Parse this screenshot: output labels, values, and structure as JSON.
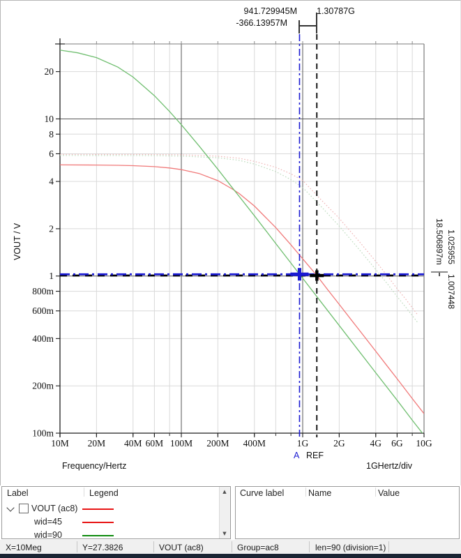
{
  "axes": {
    "y_label": "VOUT / V",
    "x_label": "Frequency/Hertz",
    "x_div_label": "1GHertz/div"
  },
  "cursors": {
    "a": {
      "name": "A",
      "color": "#1a1ad2",
      "x_hz": 941729945,
      "y_v": 1.025955,
      "x_label": "941.729945M",
      "y_label": "1.025955"
    },
    "ref": {
      "name": "REF",
      "color": "#000000",
      "x_hz": 1307870000,
      "y_v": 1.007448,
      "x_label": "1.30787G",
      "y_label": "1.007448"
    },
    "delta_x_label": "-366.13957M",
    "delta_y_label": "18.506897m"
  },
  "chart_data": {
    "type": "line",
    "x_axis": {
      "label": "Frequency/Hertz",
      "scale": "log",
      "range": [
        10000000.0,
        10000000000.0
      ],
      "ticks": [
        {
          "v": 10000000.0,
          "label": "10M"
        },
        {
          "v": 20000000.0,
          "label": "20M"
        },
        {
          "v": 40000000.0,
          "label": "40M"
        },
        {
          "v": 60000000.0,
          "label": "60M"
        },
        {
          "v": 100000000.0,
          "label": "100M"
        },
        {
          "v": 200000000.0,
          "label": "200M"
        },
        {
          "v": 400000000.0,
          "label": "400M"
        },
        {
          "v": 1000000000.0,
          "label": "1G"
        },
        {
          "v": 2000000000.0,
          "label": "2G"
        },
        {
          "v": 4000000000.0,
          "label": "4G"
        },
        {
          "v": 6000000000.0,
          "label": "6G"
        },
        {
          "v": 10000000000.0,
          "label": "10G"
        }
      ],
      "minor_gridlines": [
        20000000.0,
        40000000.0,
        60000000.0,
        80000000.0,
        200000000.0,
        400000000.0,
        600000000.0,
        800000000.0,
        2000000000.0,
        4000000000.0,
        6000000000.0,
        8000000000.0
      ],
      "major_gridlines": [
        100000000.0,
        1000000000.0
      ]
    },
    "y_axis": {
      "label": "VOUT / V",
      "scale": "log",
      "range": [
        0.1,
        30
      ],
      "ticks": [
        {
          "v": 20,
          "label": "20"
        },
        {
          "v": 10,
          "label": "10"
        },
        {
          "v": 8,
          "label": "8"
        },
        {
          "v": 6,
          "label": "6"
        },
        {
          "v": 4,
          "label": "4"
        },
        {
          "v": 2,
          "label": "2"
        },
        {
          "v": 1,
          "label": "1"
        },
        {
          "v": 0.8,
          "label": "800m"
        },
        {
          "v": 0.6,
          "label": "600m"
        },
        {
          "v": 0.4,
          "label": "400m"
        },
        {
          "v": 0.2,
          "label": "200m"
        },
        {
          "v": 0.1,
          "label": "100m"
        }
      ],
      "minor_gridlines": [
        0.2,
        0.4,
        0.6,
        0.8,
        2,
        4,
        6,
        8,
        20
      ],
      "major_gridlines": [
        1,
        10
      ]
    },
    "series": [
      {
        "name": "wid=45 (dotted)",
        "style": "dotted",
        "color": "#efb6b6",
        "points": [
          [
            10000000.0,
            5.95
          ],
          [
            50000000.0,
            5.94
          ],
          [
            100000000.0,
            5.91
          ],
          [
            200000000.0,
            5.79
          ],
          [
            300000000.0,
            5.62
          ],
          [
            400000000.0,
            5.37
          ],
          [
            600000000.0,
            4.92
          ],
          [
            800000000.0,
            4.47
          ],
          [
            1000000000.0,
            4.06
          ],
          [
            1400000000.0,
            3.09
          ],
          [
            2000000000.0,
            2.33
          ],
          [
            3000000000.0,
            1.62
          ],
          [
            4000000000.0,
            1.24
          ],
          [
            5000000000.0,
            1.0
          ],
          [
            6000000000.0,
            0.83
          ],
          [
            7000000000.0,
            0.72
          ],
          [
            8800000000.0,
            0.57
          ]
        ]
      },
      {
        "name": "wid=90 (dotted)",
        "style": "dotted",
        "color": "#bedcbe",
        "points": [
          [
            10000000.0,
            5.85
          ],
          [
            50000000.0,
            5.84
          ],
          [
            100000000.0,
            5.8
          ],
          [
            200000000.0,
            5.66
          ],
          [
            300000000.0,
            5.45
          ],
          [
            400000000.0,
            5.16
          ],
          [
            600000000.0,
            4.62
          ],
          [
            800000000.0,
            4.11
          ],
          [
            1000000000.0,
            3.66
          ],
          [
            1400000000.0,
            2.8
          ],
          [
            2000000000.0,
            2.08
          ],
          [
            3000000000.0,
            1.44
          ],
          [
            4000000000.0,
            1.1
          ],
          [
            5000000000.0,
            0.89
          ],
          [
            6000000000.0,
            0.74
          ],
          [
            7000000000.0,
            0.64
          ],
          [
            8800000000.0,
            0.51
          ]
        ]
      },
      {
        "name": "wid=45",
        "style": "solid",
        "color": "#f07878",
        "points": [
          [
            10000000.0,
            5.1
          ],
          [
            20000000.0,
            5.085
          ],
          [
            30000000.0,
            5.067
          ],
          [
            40000000.0,
            5.041
          ],
          [
            60000000.0,
            4.969
          ],
          [
            80000000.0,
            4.875
          ],
          [
            100000000.0,
            4.762
          ],
          [
            140000000.0,
            4.494
          ],
          [
            200000000.0,
            4.046
          ],
          [
            266000000.0,
            3.56
          ],
          [
            300000000.0,
            3.348
          ],
          [
            400000000.0,
            2.788
          ],
          [
            600000000.0,
            2.034
          ],
          [
            800000000.0,
            1.582
          ],
          [
            1000000000.0,
            1.288
          ],
          [
            1307870000.0,
            1.007448
          ],
          [
            1600000000.0,
            0.822
          ],
          [
            2000000000.0,
            0.66
          ],
          [
            2500000000.0,
            0.529
          ],
          [
            3000000000.0,
            0.442
          ],
          [
            4000000000.0,
            0.332
          ],
          [
            5000000000.0,
            0.266
          ],
          [
            6000000000.0,
            0.222
          ],
          [
            8000000000.0,
            0.166
          ],
          [
            10000000000.0,
            0.133
          ]
        ]
      },
      {
        "name": "wid=90",
        "style": "solid",
        "color": "#6fbe6f",
        "points": [
          [
            10000000.0,
            27.38
          ],
          [
            14000000.0,
            26.35
          ],
          [
            20000000.0,
            24.56
          ],
          [
            30000000.0,
            21.37
          ],
          [
            40000000.0,
            18.46
          ],
          [
            60000000.0,
            14.05
          ],
          [
            80000000.0,
            11.15
          ],
          [
            100000000.0,
            9.18
          ],
          [
            140000000.0,
            6.73
          ],
          [
            200000000.0,
            4.78
          ],
          [
            266000000.0,
            3.61
          ],
          [
            300000000.0,
            3.21
          ],
          [
            400000000.0,
            2.42
          ],
          [
            600000000.0,
            1.61
          ],
          [
            800000000.0,
            1.21
          ],
          [
            941729945.0,
            1.025955
          ],
          [
            1000000000.0,
            0.968
          ],
          [
            1400000000.0,
            0.692
          ],
          [
            2000000000.0,
            0.484
          ],
          [
            3000000000.0,
            0.323
          ],
          [
            4000000000.0,
            0.242
          ],
          [
            6000000000.0,
            0.162
          ],
          [
            8000000000.0,
            0.121
          ],
          [
            10000000000.0,
            0.097
          ]
        ]
      }
    ]
  },
  "legend_panel": {
    "headers": [
      "Label",
      "Legend"
    ],
    "rows": [
      {
        "label": "VOUT (ac8)",
        "color": "#e81414",
        "expander": true,
        "checkbox": true,
        "checked": false,
        "indent": 0
      },
      {
        "label": "wid=45",
        "color": "#e81414",
        "expander": false,
        "checkbox": false,
        "indent": 1
      },
      {
        "label": "wid=90",
        "color": "#0c8a0c",
        "expander": false,
        "checkbox": false,
        "indent": 1
      }
    ]
  },
  "curve_panel": {
    "headers": [
      "Curve label",
      "Name",
      "Value"
    ],
    "rows": []
  },
  "status_bar": {
    "items": [
      "X=10Meg",
      "Y=27.3826",
      "VOUT (ac8)",
      "Group=ac8",
      "len=90 (division=1)"
    ]
  },
  "colors": {
    "cursor_a": "#1a1ad2",
    "cursor_ref": "#000000",
    "grid_minor": "#d9d9d9",
    "grid_major": "#565656",
    "axis": "#1c1c1c",
    "bottom_strip": "#1a2433"
  }
}
